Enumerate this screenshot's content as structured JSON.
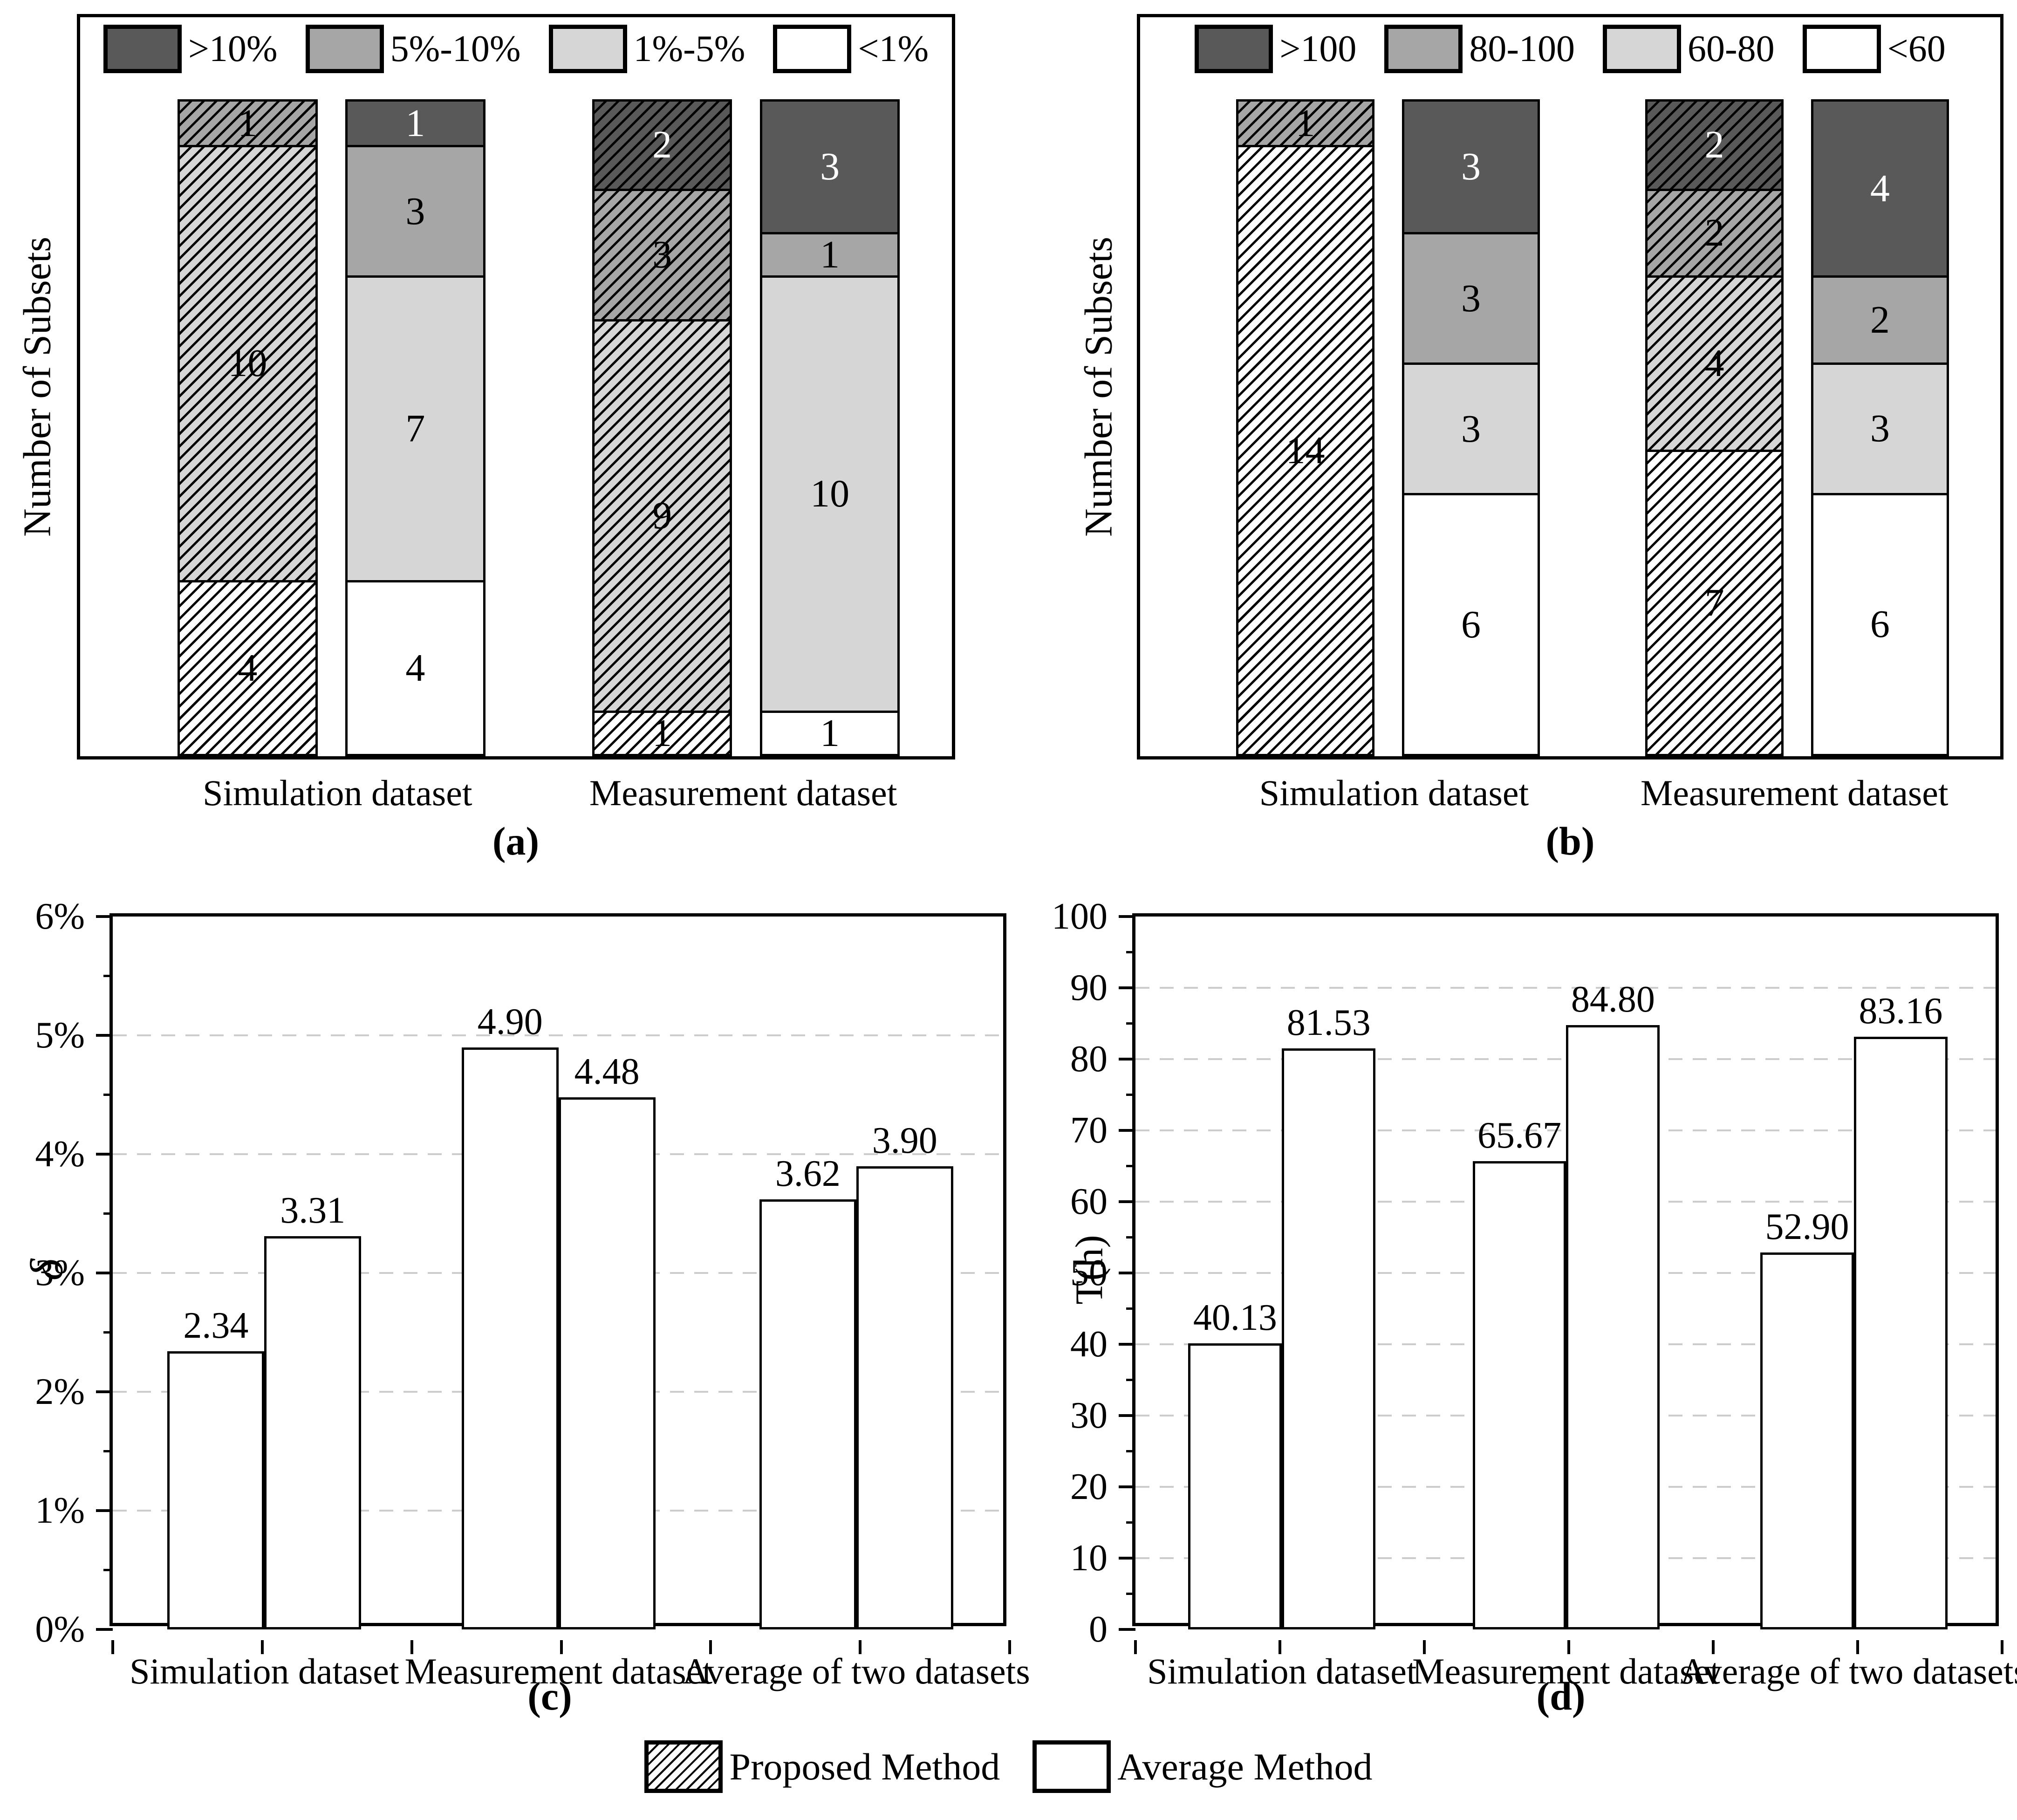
{
  "colors": {
    "dark": "#595959",
    "medium": "#a6a6a6",
    "light": "#d6d6d6",
    "white": "#ffffff",
    "grid": "#cccccc",
    "ink": "#000000"
  },
  "bottom_legend": {
    "items": [
      {
        "label": "Proposed Method",
        "hatched": true
      },
      {
        "label": "Average Method",
        "hatched": false
      }
    ]
  },
  "chart_data": [
    {
      "id": "a",
      "type": "bar",
      "subtype": "stacked",
      "caption": "(a)",
      "ylabel": "Number of Subsets",
      "ylim": [
        0,
        15
      ],
      "legend_position": "top-inside",
      "legend": [
        {
          "label": ">10%",
          "shade": "dark"
        },
        {
          "label": "5%-10%",
          "shade": "medium"
        },
        {
          "label": "1%-5%",
          "shade": "light"
        },
        {
          "label": "<1%",
          "shade": "white"
        }
      ],
      "categories": [
        "Simulation dataset",
        "Measurement dataset"
      ],
      "bars": [
        {
          "category": "Simulation dataset",
          "series": "Proposed Method",
          "hatched": true,
          "segments": [
            {
              "value": 4,
              "shade": "white"
            },
            {
              "value": 10,
              "shade": "light"
            },
            {
              "value": 1,
              "shade": "medium"
            }
          ]
        },
        {
          "category": "Simulation dataset",
          "series": "Average Method",
          "hatched": false,
          "segments": [
            {
              "value": 4,
              "shade": "white"
            },
            {
              "value": 7,
              "shade": "light"
            },
            {
              "value": 3,
              "shade": "medium"
            },
            {
              "value": 1,
              "shade": "dark"
            }
          ]
        },
        {
          "category": "Measurement dataset",
          "series": "Proposed Method",
          "hatched": true,
          "segments": [
            {
              "value": 1,
              "shade": "white"
            },
            {
              "value": 9,
              "shade": "light"
            },
            {
              "value": 3,
              "shade": "medium"
            },
            {
              "value": 2,
              "shade": "dark"
            }
          ]
        },
        {
          "category": "Measurement dataset",
          "series": "Average Method",
          "hatched": false,
          "segments": [
            {
              "value": 1,
              "shade": "white"
            },
            {
              "value": 10,
              "shade": "light"
            },
            {
              "value": 1,
              "shade": "medium"
            },
            {
              "value": 3,
              "shade": "dark"
            }
          ]
        }
      ]
    },
    {
      "id": "b",
      "type": "bar",
      "subtype": "stacked",
      "caption": "(b)",
      "ylabel": "Number of Subsets",
      "ylim": [
        0,
        15
      ],
      "legend_position": "top-inside",
      "legend": [
        {
          "label": ">100",
          "shade": "dark"
        },
        {
          "label": "80-100",
          "shade": "medium"
        },
        {
          "label": "60-80",
          "shade": "light"
        },
        {
          "label": "<60",
          "shade": "white"
        }
      ],
      "categories": [
        "Simulation dataset",
        "Measurement dataset"
      ],
      "bars": [
        {
          "category": "Simulation dataset",
          "series": "Proposed Method",
          "hatched": true,
          "segments": [
            {
              "value": 14,
              "shade": "white"
            },
            {
              "value": 1,
              "shade": "medium"
            }
          ]
        },
        {
          "category": "Simulation dataset",
          "series": "Average Method",
          "hatched": false,
          "segments": [
            {
              "value": 6,
              "shade": "white"
            },
            {
              "value": 3,
              "shade": "light"
            },
            {
              "value": 3,
              "shade": "medium"
            },
            {
              "value": 3,
              "shade": "dark"
            }
          ]
        },
        {
          "category": "Measurement dataset",
          "series": "Proposed Method",
          "hatched": true,
          "segments": [
            {
              "value": 7,
              "shade": "white"
            },
            {
              "value": 4,
              "shade": "light"
            },
            {
              "value": 2,
              "shade": "medium"
            },
            {
              "value": 2,
              "shade": "dark"
            }
          ]
        },
        {
          "category": "Measurement dataset",
          "series": "Average Method",
          "hatched": false,
          "segments": [
            {
              "value": 6,
              "shade": "white"
            },
            {
              "value": 3,
              "shade": "light"
            },
            {
              "value": 2,
              "shade": "medium"
            },
            {
              "value": 4,
              "shade": "dark"
            }
          ]
        }
      ]
    },
    {
      "id": "c",
      "type": "bar",
      "subtype": "grouped",
      "caption": "(c)",
      "ylabel": "δ",
      "ylim": [
        0,
        6
      ],
      "ytick_labels": [
        "0%",
        "1%",
        "2%",
        "3%",
        "4%",
        "5%",
        "6%"
      ],
      "grid_values": [
        1,
        2,
        3,
        4,
        5
      ],
      "minor_step": 0.5,
      "grid": true,
      "categories": [
        "Simulation dataset",
        "Measurement dataset",
        "Average of two datasets"
      ],
      "series": [
        {
          "name": "Proposed Method",
          "hatched": true,
          "values": [
            2.34,
            4.9,
            3.62
          ],
          "labels": [
            "2.34",
            "4.90",
            "3.62"
          ]
        },
        {
          "name": "Average Method",
          "hatched": false,
          "values": [
            3.31,
            4.48,
            3.9
          ],
          "labels": [
            "3.31",
            "4.48",
            "3.90"
          ]
        }
      ]
    },
    {
      "id": "d",
      "type": "bar",
      "subtype": "grouped",
      "caption": "(d)",
      "ylabel": "T(h)",
      "ylim": [
        0,
        100
      ],
      "ytick_labels": [
        "0",
        "10",
        "20",
        "30",
        "40",
        "50",
        "60",
        "70",
        "80",
        "90",
        "100"
      ],
      "grid_values": [
        10,
        20,
        30,
        40,
        50,
        60,
        70,
        80,
        90
      ],
      "minor_step": 5,
      "grid": true,
      "categories": [
        "Simulation dataset",
        "Measurement dataset",
        "Average of two datasets"
      ],
      "series": [
        {
          "name": "Proposed Method",
          "hatched": true,
          "values": [
            40.13,
            65.67,
            52.9
          ],
          "labels": [
            "40.13",
            "65.67",
            "52.90"
          ]
        },
        {
          "name": "Average Method",
          "hatched": false,
          "values": [
            81.53,
            84.8,
            83.16
          ],
          "labels": [
            "81.53",
            "84.80",
            "83.16"
          ]
        }
      ]
    }
  ]
}
